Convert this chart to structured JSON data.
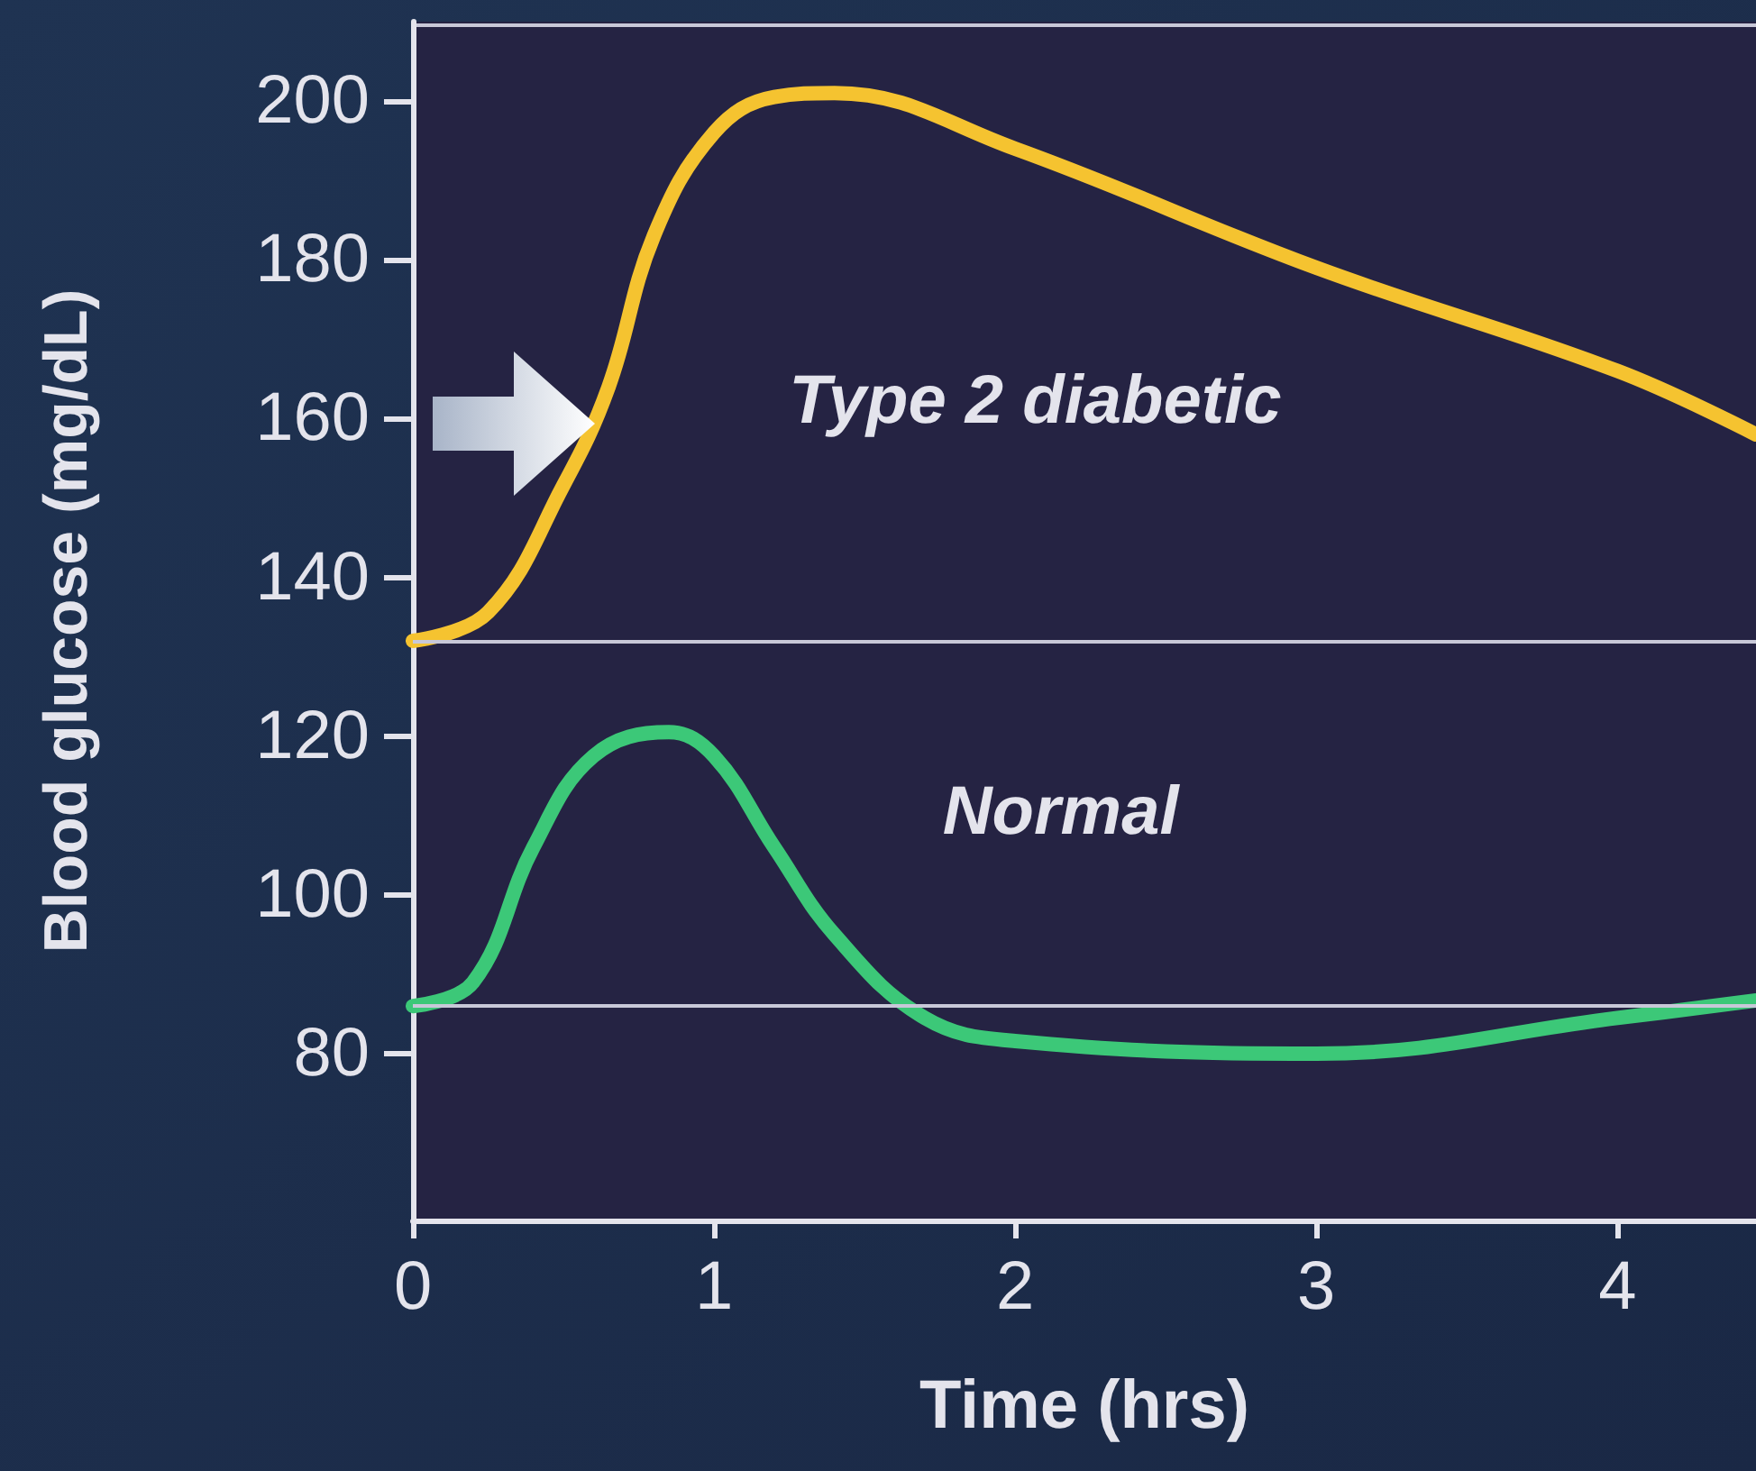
{
  "chart_data": {
    "type": "line",
    "xlabel": "Time (hrs)",
    "ylabel": "Blood glucose (mg/dL)",
    "xlim": [
      0,
      4.46
    ],
    "xticks": [
      0,
      1,
      2,
      3,
      4
    ],
    "ylim": [
      59,
      210
    ],
    "yticks": [
      80,
      100,
      120,
      140,
      160,
      180,
      200
    ],
    "grid": false,
    "legend": false,
    "marker": "none",
    "line_style": "solid",
    "ref_lines": [
      {
        "axis": "y",
        "value": 132,
        "color": "#c8c8d8"
      },
      {
        "axis": "y",
        "value": 86,
        "color": "#c8c8d8"
      }
    ],
    "series": [
      {
        "name": "Type 2 diabetic",
        "color": "#f5c330",
        "x": [
          0,
          0.25,
          0.5,
          0.65,
          0.8,
          1.0,
          1.2,
          1.4,
          2,
          3,
          4,
          4.46
        ],
        "values": [
          132,
          135.6,
          151.6,
          164,
          183,
          196,
          200.5,
          201,
          194,
          179,
          166,
          158
        ]
      },
      {
        "name": "Normal",
        "color": "#3cc878",
        "x": [
          0,
          0.2,
          0.4,
          0.6,
          0.85,
          1.0,
          1.2,
          1.4,
          1.7,
          2,
          3,
          4,
          4.46
        ],
        "values": [
          86,
          89,
          106,
          117.5,
          120.5,
          117.5,
          106,
          95,
          84.5,
          81.6,
          80,
          84.5,
          86.7
        ]
      }
    ]
  }
}
